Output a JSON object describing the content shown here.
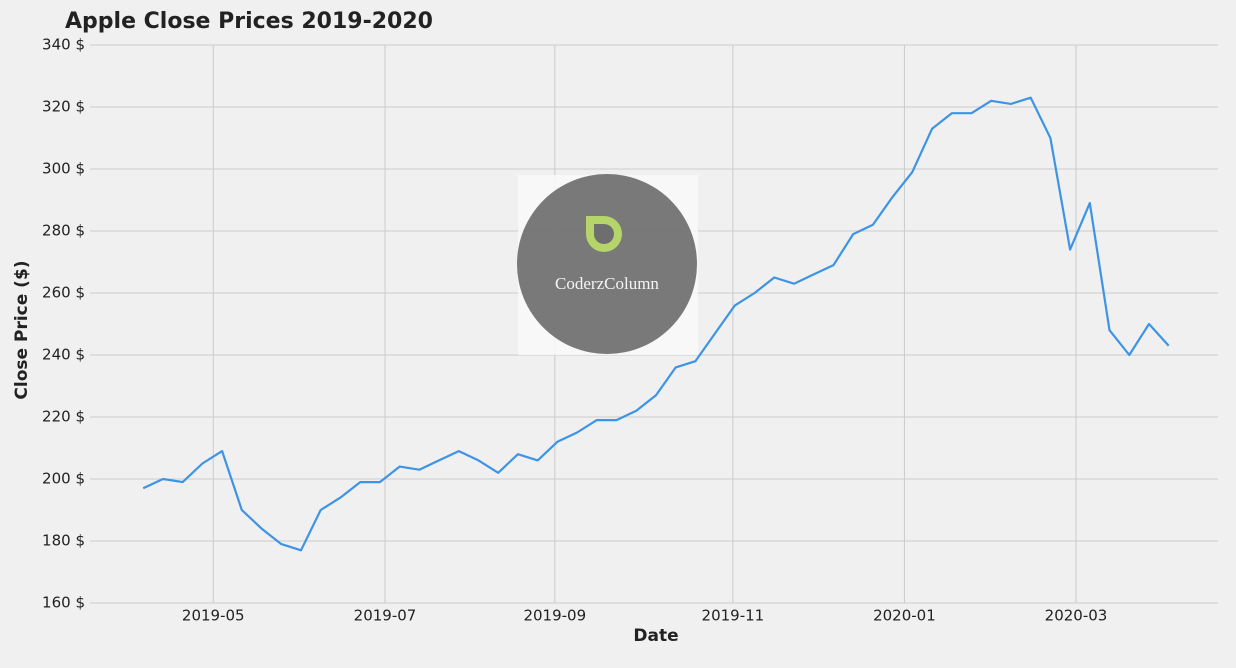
{
  "chart_data": {
    "type": "line",
    "title": "Apple Close Prices 2019-2020",
    "xlabel": "Date",
    "ylabel": "Close Price ($)",
    "watermark": "CoderzColumn",
    "x": [
      0,
      1,
      2,
      3,
      4,
      5,
      6,
      7,
      8,
      9,
      10,
      11,
      12,
      13,
      14,
      15,
      16,
      17,
      18,
      19,
      20,
      21,
      22,
      23,
      24,
      25,
      26,
      27,
      28,
      29,
      30,
      31,
      32,
      33,
      34,
      35,
      36,
      37,
      38,
      39,
      40,
      41,
      42,
      43,
      44,
      45,
      46,
      47,
      48,
      49,
      50,
      51,
      52
    ],
    "series": [
      {
        "name": "Close",
        "color": "#3d94e6",
        "values": [
          197,
          200,
          199,
          205,
          209,
          190,
          184,
          179,
          177,
          190,
          194,
          199,
          199,
          204,
          203,
          206,
          209,
          206,
          202,
          208,
          206,
          212,
          215,
          219,
          219,
          222,
          227,
          236,
          238,
          247,
          256,
          260,
          265,
          263,
          266,
          269,
          279,
          282,
          291,
          299,
          313,
          318,
          318,
          322,
          321,
          323,
          310,
          274,
          289,
          248,
          240,
          250,
          243
        ]
      }
    ],
    "xlim": [
      -2.7,
      54.5
    ],
    "xticks": [
      {
        "value": 3.55,
        "label": "2019-05"
      },
      {
        "value": 12.26,
        "label": "2019-07"
      },
      {
        "value": 20.87,
        "label": "2019-09"
      },
      {
        "value": 29.9,
        "label": "2019-11"
      },
      {
        "value": 38.6,
        "label": "2020-01"
      },
      {
        "value": 47.3,
        "label": "2020-03"
      }
    ],
    "ylim": [
      160,
      340
    ],
    "yticks": [
      {
        "value": 160,
        "label": "160 $"
      },
      {
        "value": 180,
        "label": "180 $"
      },
      {
        "value": 200,
        "label": "200 $"
      },
      {
        "value": 220,
        "label": "220 $"
      },
      {
        "value": 240,
        "label": "240 $"
      },
      {
        "value": 260,
        "label": "260 $"
      },
      {
        "value": 280,
        "label": "280 $"
      },
      {
        "value": 300,
        "label": "300 $"
      },
      {
        "value": 320,
        "label": "320 $"
      },
      {
        "value": 340,
        "label": "340 $"
      }
    ],
    "grid": true
  }
}
